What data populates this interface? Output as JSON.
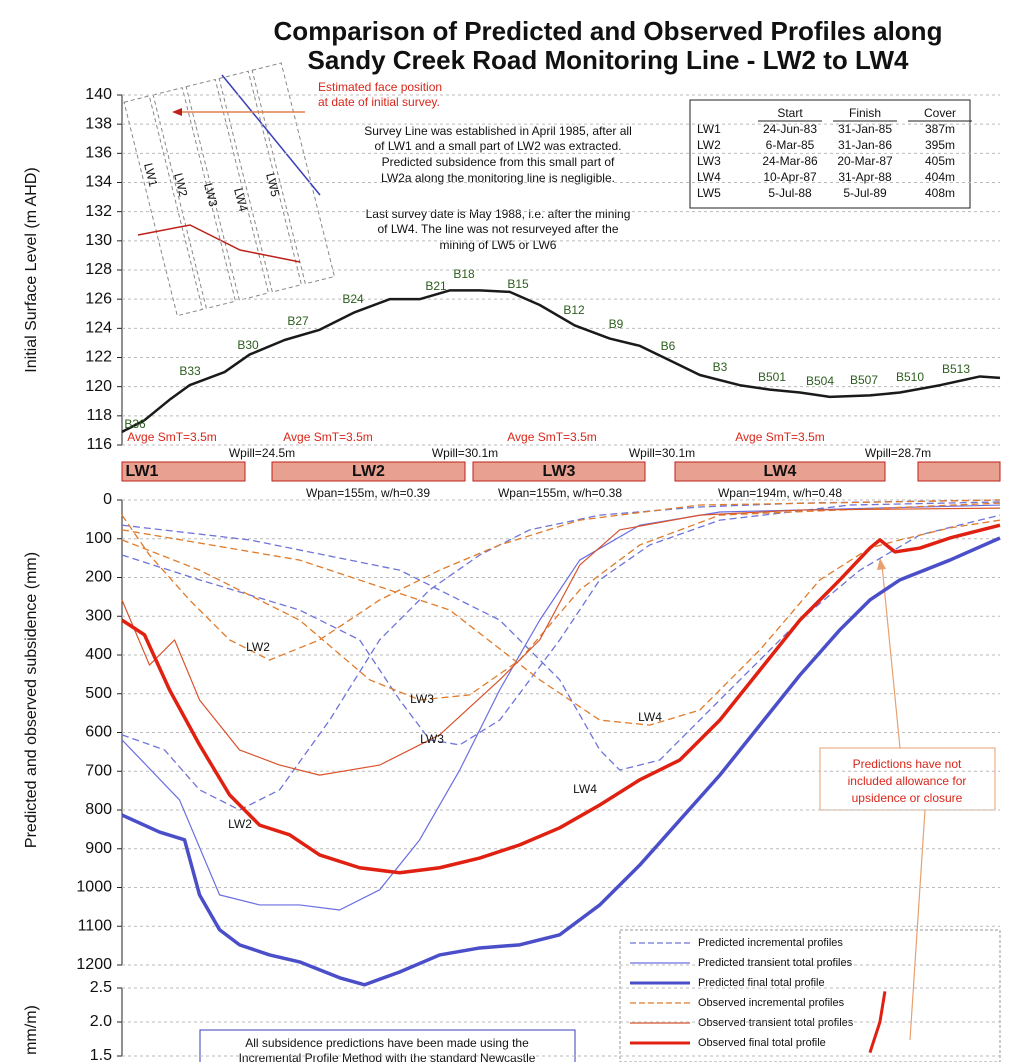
{
  "title": [
    "Comparison of Predicted and Observed Profiles  along",
    "Sandy Creek Road Monitoring Line -  LW2 to LW4"
  ],
  "inset": {
    "note": [
      "Estimated face position",
      "at date of initial survey."
    ],
    "labels": [
      "LW1",
      "LW2",
      "LW3",
      "LW4",
      "LW5"
    ]
  },
  "notes": [
    "Survey Line was established in April 1985,  after all",
    "of LW1 and a small part of LW2  was extracted.",
    "Predicted subsidence from this small part of",
    "LW2a  along the monitoring line is negligible.",
    "Last survey date is May 1988, i.e. after the mining",
    "of LW4. The line was not resurveyed after the",
    "mining of LW5 or LW6"
  ],
  "table": {
    "header": [
      "Start",
      "Finish",
      "Cover"
    ],
    "rows": [
      [
        "LW1",
        "24-Jun-83",
        "31-Jan-85",
        "387m"
      ],
      [
        "LW2",
        "6-Mar-85",
        "31-Jan-86",
        "395m"
      ],
      [
        "LW3",
        "24-Mar-86",
        "20-Mar-87",
        "405m"
      ],
      [
        "LW4",
        "10-Apr-87",
        "31-Apr-88",
        "404m"
      ],
      [
        "LW5",
        "5-Jul-88",
        "5-Jul-89",
        "408m"
      ]
    ]
  },
  "panels": {
    "labels": [
      "LW1",
      "LW2",
      "LW3",
      "LW4"
    ],
    "smt": [
      "Avge SmT=3.5m",
      "Avge SmT=3.5m",
      "Avge SmT=3.5m",
      "Avge SmT=3.5m"
    ],
    "wpill": [
      "Wpill=24.5m",
      "Wpill=30.1m",
      "Wpill=30.1m",
      "Wpill=28.7m"
    ],
    "wpan": [
      "Wpan=155m, w/h=0.39",
      "Wpan=155m, w/h=0.38",
      "Wpan=194m, w/h=0.48"
    ]
  },
  "callout": [
    "Predictions have not",
    "included allowance for",
    "upsidence or closure"
  ],
  "footnote": [
    "All subsidence predictions have been made using the",
    "Incremental Profile Method with the standard Newcastle"
  ],
  "chart_data": [
    {
      "type": "line",
      "y_label": "Initial Surface Level (m AHD)",
      "xlim": [
        0,
        702
      ],
      "ylim": [
        116,
        140
      ],
      "yticks": [
        116,
        118,
        120,
        122,
        124,
        126,
        128,
        130,
        132,
        134,
        136,
        138,
        140
      ],
      "grid": true,
      "annotations": [
        "B36",
        "B33",
        "B30",
        "B27",
        "B24",
        "B21",
        "B18",
        "B15",
        "B12",
        "B9",
        "B6",
        "B3",
        "B501",
        "B504",
        "B507",
        "B510",
        "B513"
      ],
      "series": [
        {
          "color": "#1a1a1a",
          "x": [
            0,
            18,
            38,
            54,
            82,
            102,
            130,
            158,
            186,
            214,
            238,
            262,
            286,
            310,
            334,
            362,
            390,
            414,
            438,
            462,
            494,
            518,
            542,
            566,
            598,
            622,
            654,
            686,
            702
          ],
          "values": [
            116.9,
            117.7,
            119.1,
            120.1,
            121.0,
            122.2,
            123.2,
            123.9,
            125.1,
            126.0,
            126.0,
            126.6,
            126.6,
            126.5,
            125.6,
            124.2,
            123.3,
            122.8,
            121.8,
            120.8,
            120.1,
            119.8,
            119.6,
            119.3,
            119.4,
            119.6,
            120.1,
            120.7,
            120.6
          ]
        }
      ]
    },
    {
      "type": "line",
      "y_label": "Predicted and observed subsidence (mm)",
      "xlim": [
        0,
        702
      ],
      "ylim": [
        0,
        1200
      ],
      "y_inverted": true,
      "yticks": [
        0,
        100,
        200,
        300,
        400,
        500,
        600,
        700,
        800,
        900,
        1000,
        1100,
        1200
      ],
      "grid": true,
      "series": [
        {
          "name": "Predicted incremental profiles",
          "color": "#6f74d8",
          "dashed": true,
          "width": 1.3,
          "curves": [
            {
              "label": "LW2",
              "x": [
                0,
                34,
                62,
                94,
                126,
                166,
                206,
                246,
                286,
                326,
                382,
                462,
                542,
                702
              ],
              "values": [
                606,
                645,
                748,
                800,
                748,
                568,
                361,
                232,
                142,
                77,
                39,
                18,
                8,
                0
              ]
            },
            {
              "label": "LW3",
              "x": [
                0,
                62,
                142,
                190,
                222,
                246,
                270,
                302,
                350,
                382,
                422,
                478,
                582,
                702
              ],
              "values": [
                142,
                206,
                284,
                361,
                516,
                619,
                632,
                568,
                361,
                206,
                116,
                52,
                13,
                5
              ]
            },
            {
              "label": "LW4",
              "x": [
                0,
                102,
                222,
                302,
                350,
                382,
                398,
                430,
                478,
                542,
                590,
                638,
                702
              ],
              "values": [
                65,
                103,
                181,
                310,
                464,
                645,
                697,
                671,
                516,
                310,
                181,
                90,
                39
              ]
            }
          ]
        },
        {
          "name": "Predicted transient total profiles",
          "color": "#6a6ee0",
          "dashed": false,
          "width": 1.2,
          "curves": [
            {
              "x": [
                0,
                46,
                78,
                110,
                142,
                174,
                206,
                238,
                270,
                302,
                334,
                366,
                414,
                478,
                702
              ],
              "values": [
                619,
                774,
                1019,
                1045,
                1045,
                1058,
                1006,
                877,
                697,
                490,
                310,
                155,
                65,
                31,
                13
              ]
            }
          ]
        },
        {
          "name": "Predicted final total profile",
          "color": "#4a4ec8",
          "dashed": false,
          "width": 3.5,
          "curves": [
            {
              "x": [
                0,
                30,
                50,
                62,
                78,
                94,
                118,
                142,
                174,
                194,
                222,
                254,
                286,
                318,
                350,
                382,
                414,
                446,
                478,
                510,
                542,
                574,
                598,
                622,
                662,
                702
              ],
              "values": [
                813,
                857,
                877,
                1019,
                1109,
                1148,
                1174,
                1192,
                1233,
                1251,
                1218,
                1174,
                1156,
                1148,
                1122,
                1045,
                942,
                826,
                710,
                581,
                452,
                335,
                258,
                206,
                155,
                98
              ]
            }
          ]
        },
        {
          "name": "Observed incremental profiles",
          "color": "#e07b2a",
          "dashed": true,
          "width": 1.3,
          "curves": [
            {
              "label": "LW2",
              "x": [
                0,
                22,
                54,
                86,
                118,
                158,
                206,
                254,
                302,
                366,
                462,
                702
              ],
              "values": [
                39,
                142,
                258,
                361,
                413,
                361,
                258,
                181,
                116,
                52,
                13,
                0
              ]
            },
            {
              "label": "LW3",
              "x": [
                0,
                62,
                142,
                198,
                238,
                278,
                318,
                366,
                414,
                478,
                702
              ],
              "values": [
                103,
                181,
                310,
                464,
                516,
                503,
                413,
                232,
                116,
                39,
                8
              ]
            },
            {
              "label": "LW4",
              "x": [
                0,
                142,
                262,
                334,
                382,
                422,
                462,
                510,
                558,
                598,
                622,
                662,
                702
              ],
              "values": [
                77,
                155,
                284,
                464,
                568,
                581,
                542,
                387,
                206,
                124,
                103,
                72,
                52
              ]
            }
          ]
        },
        {
          "name": "Observed transient total profiles",
          "color": "#d9532b",
          "dashed": false,
          "width": 1.2,
          "curves": [
            {
              "x": [
                0,
                22,
                42,
                62,
                94,
                126,
                158,
                206,
                254,
                302,
                334,
                366,
                398,
                462,
                542,
                702
              ],
              "values": [
                258,
                426,
                361,
                516,
                645,
                684,
                710,
                684,
                606,
                464,
                361,
                168,
                77,
                39,
                26,
                21
              ]
            }
          ]
        },
        {
          "name": "Observed final total profile",
          "color": "#e02010",
          "dashed": false,
          "width": 3.5,
          "curves": [
            {
              "x": [
                0,
                18,
                38,
                62,
                86,
                110,
                134,
                158,
                190,
                222,
                254,
                286,
                318,
                350,
                382,
                414,
                446,
                478,
                510,
                542,
                574,
                598,
                606,
                618,
                638,
                662,
                702
              ],
              "values": [
                310,
                348,
                490,
                632,
                761,
                839,
                864,
                916,
                949,
                962,
                949,
                924,
                890,
                846,
                787,
                722,
                671,
                568,
                439,
                310,
                206,
                124,
                103,
                134,
                124,
                98,
                65
              ]
            }
          ]
        }
      ]
    },
    {
      "type": "line",
      "y_label": "mm/m)",
      "xlim": [
        0,
        702
      ],
      "ylim": [
        1.5,
        2.5
      ],
      "yticks": [
        2.5,
        {
          "value": 2,
          "label": "2.0"
        },
        1.5
      ],
      "grid": true,
      "series": [
        {
          "color": "#e02010",
          "x": [
            598,
            606,
            610
          ],
          "values": [
            1.55,
            2.0,
            2.45
          ]
        }
      ]
    }
  ]
}
